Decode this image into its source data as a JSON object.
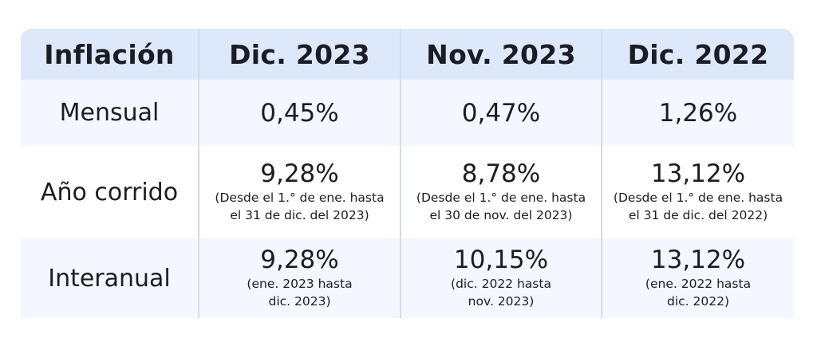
{
  "header": [
    "Inflación",
    "Dic. 2023",
    "Nov. 2023",
    "Dic. 2022"
  ],
  "rows": [
    {
      "label": "Mensual",
      "cells": [
        {
          "value": "0,45%",
          "note1": "",
          "note2": ""
        },
        {
          "value": "0,47%",
          "note1": "",
          "note2": ""
        },
        {
          "value": "1,26%",
          "note1": "",
          "note2": ""
        }
      ]
    },
    {
      "label": "Año corrido",
      "cells": [
        {
          "value": "9,28%",
          "note1": "(Desde el 1.° de ene. hasta",
          "note2": "el 31 de dic. del 2023)"
        },
        {
          "value": "8,78%",
          "note1": "(Desde el 1.° de ene. hasta",
          "note2": "el 30 de nov. del 2023)"
        },
        {
          "value": "13,12%",
          "note1": "(Desde el 1.° de ene. hasta",
          "note2": "el 31 de dic. del 2022)"
        }
      ]
    },
    {
      "label": "Interanual",
      "cells": [
        {
          "value": "9,28%",
          "note1": "(ene. 2023 hasta",
          "note2": "dic. 2023)"
        },
        {
          "value": "10,15%",
          "note1": "(dic. 2022 hasta",
          "note2": "nov. 2023)"
        },
        {
          "value": "13,12%",
          "note1": "(ene. 2022 hasta",
          "note2": "dic. 2022)"
        }
      ]
    }
  ]
}
